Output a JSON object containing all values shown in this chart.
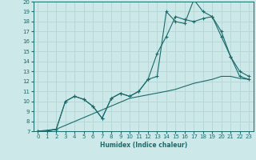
{
  "xlabel": "Humidex (Indice chaleur)",
  "xlim": [
    -0.5,
    23.5
  ],
  "ylim": [
    7,
    20
  ],
  "xticks": [
    0,
    1,
    2,
    3,
    4,
    5,
    6,
    7,
    8,
    9,
    10,
    11,
    12,
    13,
    14,
    15,
    16,
    17,
    18,
    19,
    20,
    21,
    22,
    23
  ],
  "yticks": [
    7,
    8,
    9,
    10,
    11,
    12,
    13,
    14,
    15,
    16,
    17,
    18,
    19,
    20
  ],
  "bg_color": "#cde8e8",
  "grid_color": "#b8d8d8",
  "line_color": "#1a6b6b",
  "line1_x": [
    0,
    1,
    2,
    3,
    4,
    5,
    6,
    7,
    8,
    9,
    10,
    11,
    12,
    13,
    14,
    15,
    16,
    17,
    18,
    19,
    20,
    21,
    22,
    23
  ],
  "line1_y": [
    7.0,
    7.0,
    7.2,
    10.0,
    10.5,
    10.2,
    9.5,
    8.3,
    10.3,
    10.8,
    10.5,
    11.0,
    12.2,
    14.8,
    16.5,
    18.5,
    18.2,
    18.0,
    18.3,
    18.5,
    16.5,
    14.5,
    13.0,
    12.5
  ],
  "line2_x": [
    0,
    1,
    2,
    3,
    4,
    5,
    6,
    7,
    8,
    9,
    10,
    11,
    12,
    13,
    14,
    15,
    16,
    17,
    18,
    19,
    20,
    21,
    22,
    23
  ],
  "line2_y": [
    7.0,
    7.0,
    7.2,
    10.0,
    10.5,
    10.2,
    9.5,
    8.3,
    10.3,
    10.8,
    10.5,
    11.0,
    12.2,
    12.5,
    19.0,
    18.0,
    17.8,
    20.2,
    19.0,
    18.5,
    17.0,
    14.5,
    12.5,
    12.2
  ],
  "line3_x": [
    0,
    2,
    10,
    14,
    15,
    16,
    17,
    18,
    19,
    20,
    21,
    22,
    23
  ],
  "line3_y": [
    7.0,
    7.2,
    10.3,
    11.0,
    11.2,
    11.5,
    11.8,
    12.0,
    12.2,
    12.5,
    12.5,
    12.3,
    12.2
  ]
}
